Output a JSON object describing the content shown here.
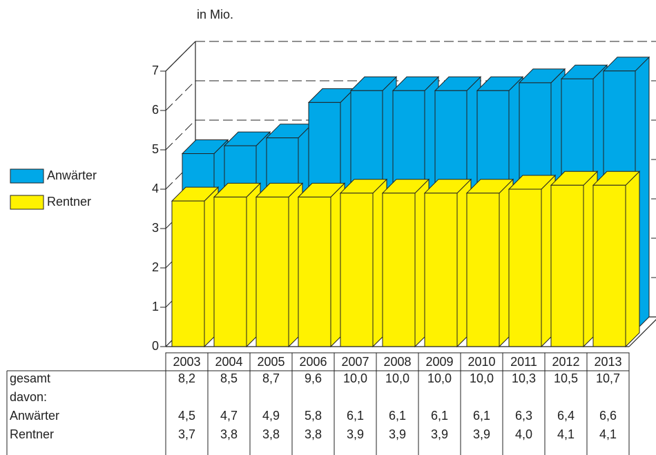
{
  "chart_data": {
    "type": "bar3d",
    "unit_label": "in Mio.",
    "categories": [
      "2003",
      "2004",
      "2005",
      "2006",
      "2007",
      "2008",
      "2009",
      "2010",
      "2011",
      "2012",
      "2013"
    ],
    "series": [
      {
        "name": "Anwärter",
        "color": "#00a8e8",
        "values": [
          4.5,
          4.7,
          4.9,
          5.8,
          6.1,
          6.1,
          6.1,
          6.1,
          6.3,
          6.4,
          6.6
        ],
        "value_labels": [
          "4,5",
          "4,7",
          "4,9",
          "5,8",
          "6,1",
          "6,1",
          "6,1",
          "6,1",
          "6,3",
          "6,4",
          "6,6"
        ]
      },
      {
        "name": "Rentner",
        "color": "#fff200",
        "values": [
          3.7,
          3.8,
          3.8,
          3.8,
          3.9,
          3.9,
          3.9,
          3.9,
          4.0,
          4.1,
          4.1
        ],
        "value_labels": [
          "3,7",
          "3,8",
          "3,8",
          "3,8",
          "3,9",
          "3,9",
          "3,9",
          "3,9",
          "4,0",
          "4,1",
          "4,1"
        ]
      }
    ],
    "total": {
      "name": "gesamt",
      "values": [
        8.2,
        8.5,
        8.7,
        9.6,
        10.0,
        10.0,
        10.0,
        10.0,
        10.3,
        10.5,
        10.7
      ],
      "value_labels": [
        "8,2",
        "8,5",
        "8,7",
        "9,6",
        "10,0",
        "10,0",
        "10,0",
        "10,0",
        "10,3",
        "10,5",
        "10,7"
      ]
    },
    "subtotal_label": "davon:",
    "ylim": [
      0,
      7
    ],
    "yticks": [
      0,
      1,
      2,
      3,
      4,
      5,
      6,
      7
    ],
    "grid": true
  }
}
